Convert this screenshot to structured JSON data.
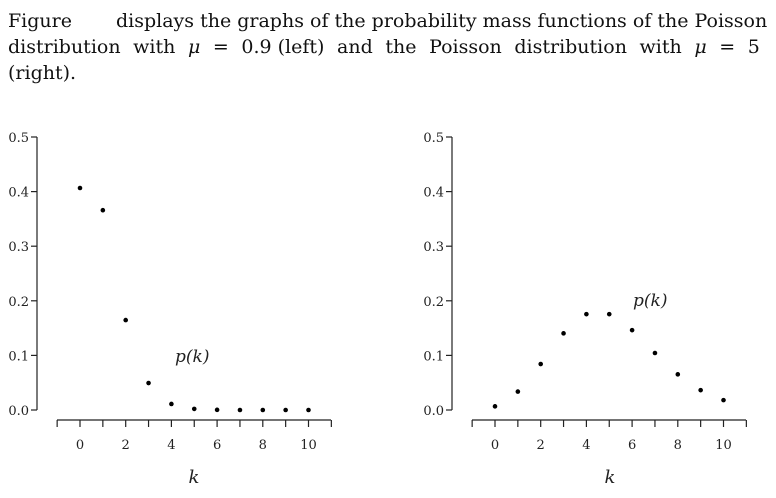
{
  "caption": {
    "w1": "Figure",
    "w2": "displays the graphs of the probability mass functions of the Poisson",
    "l2a": "distribution",
    "l2b": "with",
    "l2c": "μ",
    "l2d": "=",
    "l2e": "0.9 (left)",
    "l2f": "and",
    "l2g": "the",
    "l2h": "Poisson",
    "l2i": "distribution",
    "l2j": "with",
    "l2k": "μ",
    "l2l": "=",
    "l2m": "5",
    "l3": "(right)."
  },
  "chart_data": [
    {
      "type": "scatter",
      "xlabel": "k",
      "annotation": "p(k)",
      "x": [
        0,
        1,
        2,
        3,
        4,
        5,
        6,
        7,
        8,
        9,
        10
      ],
      "y": [
        0.4066,
        0.3659,
        0.1647,
        0.0494,
        0.0111,
        0.002,
        0.0003,
        0.0,
        0.0,
        0.0,
        0.0
      ],
      "xticks": [
        "0",
        "2",
        "4",
        "6",
        "8",
        "10"
      ],
      "yticks": [
        "0.0",
        "0.1",
        "0.2",
        "0.3",
        "0.4",
        "0.5"
      ],
      "xlim": [
        -1,
        11
      ],
      "ylim": [
        0,
        0.5
      ]
    },
    {
      "type": "scatter",
      "xlabel": "k",
      "annotation": "p(k)",
      "x": [
        0,
        1,
        2,
        3,
        4,
        5,
        6,
        7,
        8,
        9,
        10
      ],
      "y": [
        0.0067,
        0.0337,
        0.0842,
        0.1404,
        0.1755,
        0.1755,
        0.1462,
        0.1044,
        0.0653,
        0.0363,
        0.0181
      ],
      "xticks": [
        "0",
        "2",
        "4",
        "6",
        "8",
        "10"
      ],
      "yticks": [
        "0.0",
        "0.1",
        "0.2",
        "0.3",
        "0.4",
        "0.5"
      ],
      "xlim": [
        -1,
        11
      ],
      "ylim": [
        0,
        0.5
      ]
    }
  ]
}
